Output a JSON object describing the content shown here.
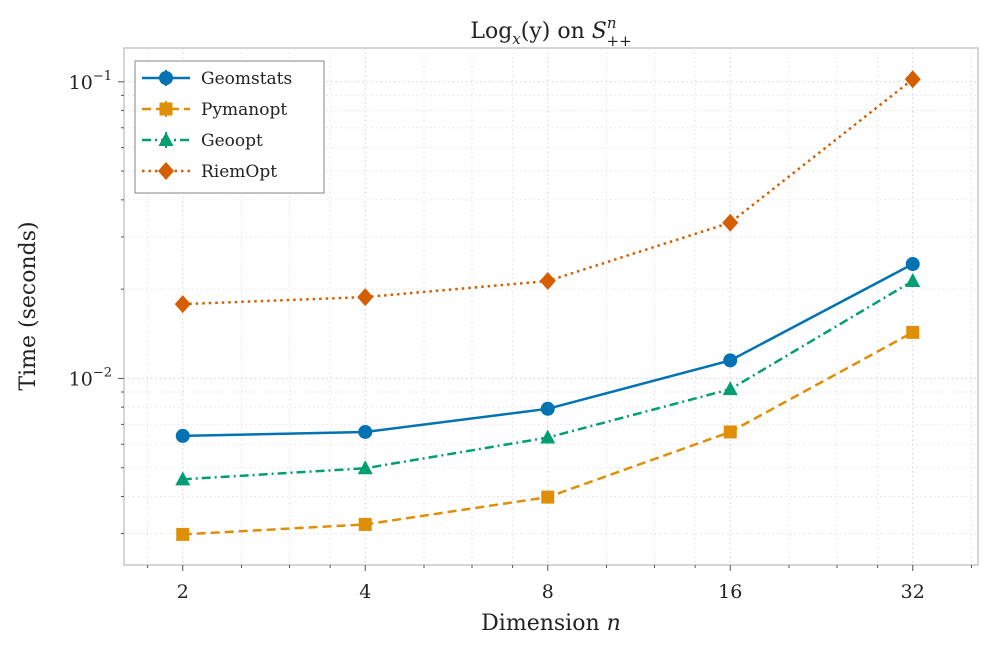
{
  "chart_data": {
    "type": "line",
    "title": "Log_x(y) on S^n_{++}",
    "title_parts": {
      "log": "Log",
      "log_sub": "x",
      "arg": "(y) on ",
      "space": "S",
      "space_sup": "n",
      "space_sub": "++"
    },
    "xlabel_parts": {
      "text": "Dimension ",
      "var": "n"
    },
    "ylabel": "Time (seconds)",
    "x_scale": "log2",
    "y_scale": "log10",
    "x": [
      2,
      4,
      8,
      16,
      32
    ],
    "x_tick_labels": [
      "2",
      "4",
      "8",
      "16",
      "32"
    ],
    "xlim": [
      1.6,
      41
    ],
    "ylim": [
      0.00235,
      0.13
    ],
    "y_tick_labels": [
      {
        "value": 0.1,
        "base": "10",
        "exp": "−1"
      },
      {
        "value": 0.01,
        "base": "10",
        "exp": "−2"
      }
    ],
    "grid": true,
    "legend_position": "top-left",
    "series": [
      {
        "name": "Geomstats",
        "color": "#0173b2",
        "marker": "circle",
        "linestyle": "solid",
        "values": [
          0.0064,
          0.0066,
          0.0079,
          0.0115,
          0.0243
        ]
      },
      {
        "name": "Pymanopt",
        "color": "#de8f05",
        "marker": "square",
        "linestyle": "dashed",
        "values": [
          0.00298,
          0.00322,
          0.00398,
          0.0066,
          0.0143
        ]
      },
      {
        "name": "Geoopt",
        "color": "#029e73",
        "marker": "triangle",
        "linestyle": "dashdot",
        "values": [
          0.00457,
          0.00498,
          0.00632,
          0.0092,
          0.0213
        ]
      },
      {
        "name": "RiemOpt",
        "color": "#d55e00",
        "marker": "diamond",
        "linestyle": "dotted",
        "values": [
          0.0178,
          0.0188,
          0.0213,
          0.0335,
          0.102
        ]
      }
    ]
  }
}
